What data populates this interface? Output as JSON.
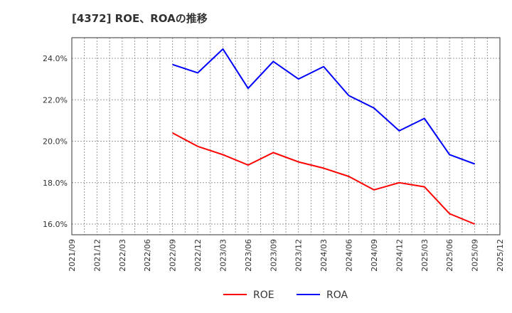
{
  "title": "[4372]  ROE、ROAの推移",
  "legend": [
    {
      "name": "ROE",
      "color": "#ff0000"
    },
    {
      "name": "ROA",
      "color": "#0000ff"
    }
  ],
  "chart_data": {
    "type": "line",
    "title": "[4372]  ROE、ROAの推移",
    "xlabel": "",
    "ylabel": "",
    "x": [
      "2021/09",
      "2021/12",
      "2022/03",
      "2022/06",
      "2022/09",
      "2022/12",
      "2023/03",
      "2023/06",
      "2023/09",
      "2023/12",
      "2024/03",
      "2024/06",
      "2024/09",
      "2024/12",
      "2025/03",
      "2025/06",
      "2025/09",
      "2025/12"
    ],
    "yticks": [
      "16.0%",
      "18.0%",
      "20.0%",
      "22.0%",
      "24.0%"
    ],
    "ylim": [
      15.5,
      25.0
    ],
    "grid": true,
    "legend_position": "bottom",
    "series": [
      {
        "name": "ROE",
        "color": "#ff0000",
        "values": [
          null,
          null,
          null,
          null,
          20.4,
          19.75,
          19.35,
          18.85,
          19.45,
          19.0,
          18.7,
          18.3,
          17.65,
          18.0,
          17.8,
          16.5,
          16.0,
          null
        ]
      },
      {
        "name": "ROA",
        "color": "#0000ff",
        "values": [
          null,
          null,
          null,
          null,
          23.7,
          23.3,
          24.45,
          22.55,
          23.85,
          23.0,
          23.6,
          22.2,
          21.6,
          20.5,
          21.1,
          19.35,
          18.9,
          null
        ]
      }
    ]
  }
}
